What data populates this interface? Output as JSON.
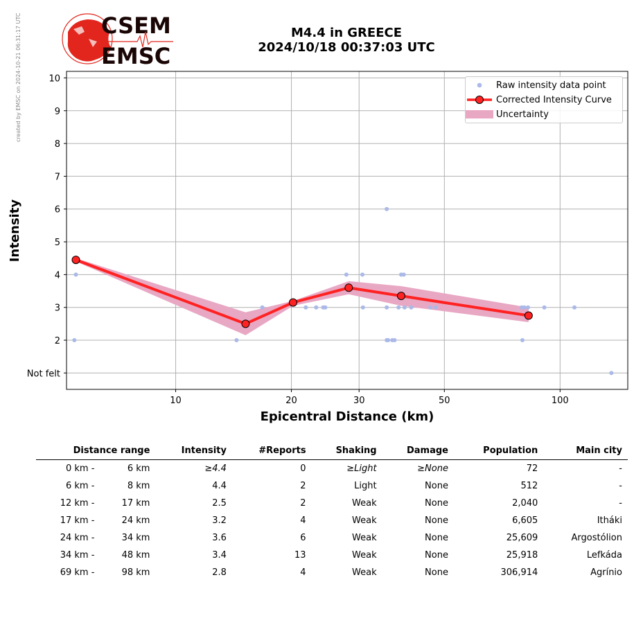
{
  "side_note": "created by EMSC on 2024-10-21 06:31:17 UTC",
  "logo": {
    "line1": "CSEM",
    "line2": "EMSC"
  },
  "title": {
    "line1": "M4.4 in GREECE",
    "line2": "2024/10/18 00:37:03 UTC"
  },
  "colors": {
    "raw": "#aab9e8",
    "curve": "#ff2222",
    "marker_edge": "#000000",
    "uncertainty": "#e8a8c4",
    "grid": "#b0b0b0",
    "logo_red": "#e2261d"
  },
  "chart_data": {
    "type": "line",
    "xscale": "log",
    "xlabel": "Epicentral Distance (km)",
    "ylabel": "Intensity",
    "xlim": [
      5.2,
      150
    ],
    "ylim": [
      0.5,
      10.2
    ],
    "xticks": [
      10,
      20,
      30,
      50,
      100
    ],
    "xtick_labels": [
      "10",
      "20",
      "30",
      "50",
      "100"
    ],
    "yticks": [
      1,
      2,
      3,
      4,
      5,
      6,
      7,
      8,
      9,
      10
    ],
    "ytick_labels": [
      "Not felt",
      "2",
      "3",
      "4",
      "5",
      "6",
      "7",
      "8",
      "9",
      "10"
    ],
    "grid": true,
    "legend": {
      "position": "top-right",
      "entries": [
        "Raw intensity data point",
        "Corrected Intensity Curve",
        "Uncertainty"
      ]
    },
    "raw_points": [
      [
        5.5,
        4
      ],
      [
        5.45,
        2
      ],
      [
        14.4,
        2
      ],
      [
        16.8,
        3
      ],
      [
        21.8,
        3
      ],
      [
        23.2,
        3
      ],
      [
        24.2,
        3
      ],
      [
        24.5,
        3
      ],
      [
        27.8,
        4
      ],
      [
        30.6,
        4
      ],
      [
        30.7,
        3
      ],
      [
        35.4,
        6
      ],
      [
        35.4,
        3
      ],
      [
        35.4,
        2
      ],
      [
        35.7,
        2
      ],
      [
        36.6,
        2
      ],
      [
        37.1,
        2
      ],
      [
        38.0,
        3
      ],
      [
        38.6,
        4
      ],
      [
        39.2,
        4
      ],
      [
        39.4,
        3
      ],
      [
        41.0,
        3
      ],
      [
        46.0,
        3
      ],
      [
        47.5,
        3
      ],
      [
        79.8,
        2
      ],
      [
        79.5,
        3
      ],
      [
        80.7,
        3
      ],
      [
        82.5,
        3
      ],
      [
        91.0,
        3
      ],
      [
        109.0,
        3
      ],
      [
        136.0,
        1
      ]
    ],
    "series": [
      {
        "name": "Corrected Intensity Curve",
        "x": [
          5.5,
          15.2,
          20.2,
          28.2,
          38.6,
          82.8
        ],
        "y": [
          4.45,
          2.5,
          3.15,
          3.6,
          3.35,
          2.75
        ]
      }
    ],
    "uncertainty": {
      "x": [
        5.5,
        15.2,
        20.2,
        28.2,
        38.6,
        82.8
      ],
      "upper": [
        4.5,
        2.85,
        3.2,
        3.8,
        3.65,
        3.0
      ],
      "lower": [
        4.4,
        2.15,
        3.05,
        3.4,
        3.05,
        2.55
      ]
    }
  },
  "table": {
    "headers": [
      "Distance range",
      "Intensity",
      "#Reports",
      "Shaking",
      "Damage",
      "Population",
      "Main city"
    ],
    "rows": [
      {
        "d_from": "0 km -",
        "d_to": "6 km",
        "intensity": "≥4.4",
        "reports": "0",
        "shaking": "≥Light",
        "damage": "≥None",
        "population": "72",
        "city": "-",
        "italic": true
      },
      {
        "d_from": "6 km -",
        "d_to": "8 km",
        "intensity": "4.4",
        "reports": "2",
        "shaking": "Light",
        "damage": "None",
        "population": "512",
        "city": "-",
        "italic": false
      },
      {
        "d_from": "12 km -",
        "d_to": "17 km",
        "intensity": "2.5",
        "reports": "2",
        "shaking": "Weak",
        "damage": "None",
        "population": "2,040",
        "city": "-",
        "italic": false
      },
      {
        "d_from": "17 km -",
        "d_to": "24 km",
        "intensity": "3.2",
        "reports": "4",
        "shaking": "Weak",
        "damage": "None",
        "population": "6,605",
        "city": "Itháki",
        "italic": false
      },
      {
        "d_from": "24 km -",
        "d_to": "34 km",
        "intensity": "3.6",
        "reports": "6",
        "shaking": "Weak",
        "damage": "None",
        "population": "25,609",
        "city": "Argostólion",
        "italic": false
      },
      {
        "d_from": "34 km -",
        "d_to": "48 km",
        "intensity": "3.4",
        "reports": "13",
        "shaking": "Weak",
        "damage": "None",
        "population": "25,918",
        "city": "Lefkáda",
        "italic": false
      },
      {
        "d_from": "69 km -",
        "d_to": "98 km",
        "intensity": "2.8",
        "reports": "4",
        "shaking": "Weak",
        "damage": "None",
        "population": "306,914",
        "city": "Agrínio",
        "italic": false
      }
    ]
  }
}
